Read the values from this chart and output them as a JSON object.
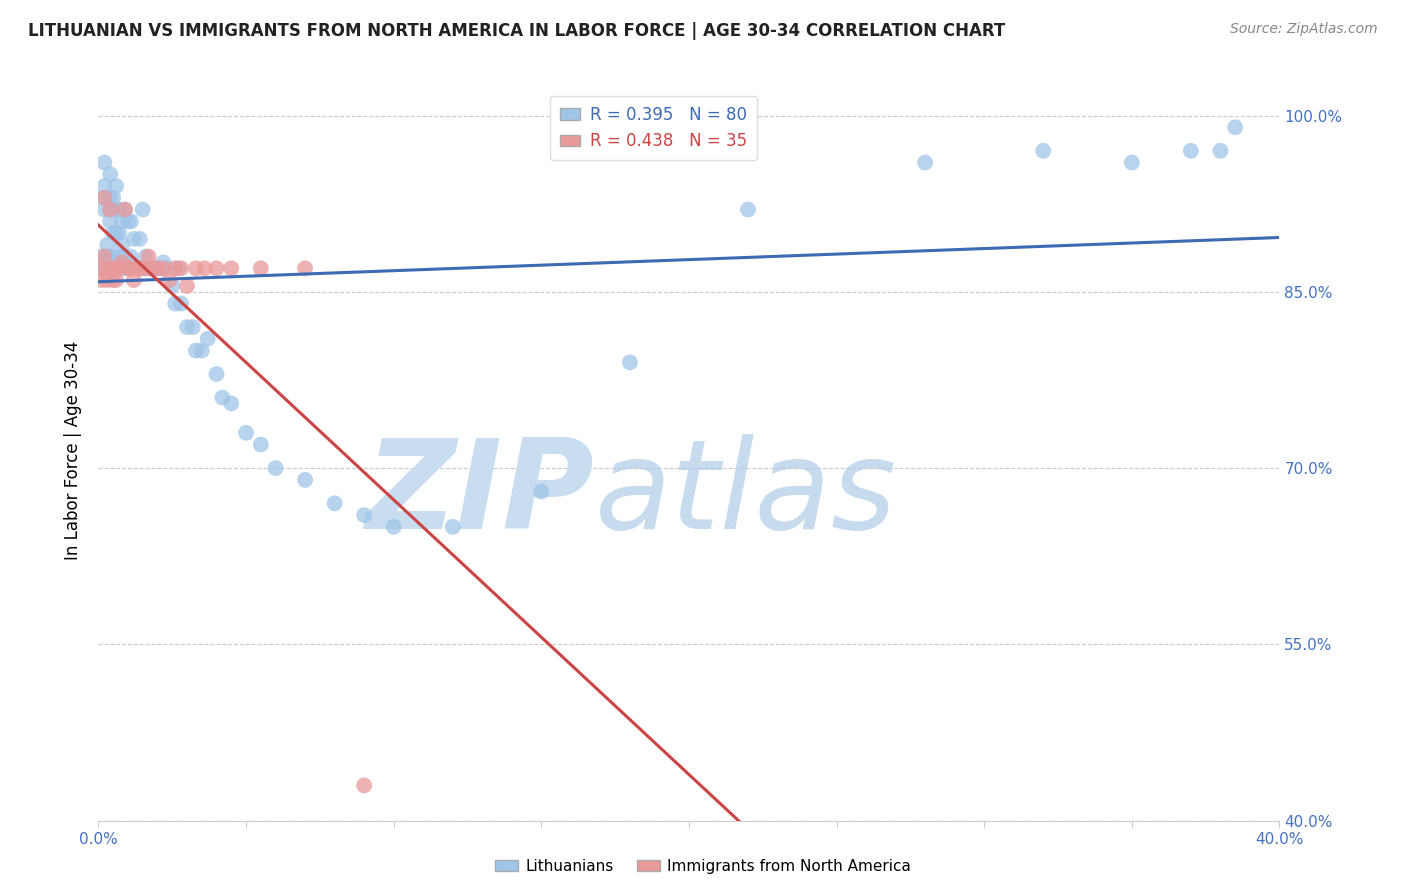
{
  "title": "LITHUANIAN VS IMMIGRANTS FROM NORTH AMERICA IN LABOR FORCE | AGE 30-34 CORRELATION CHART",
  "source": "Source: ZipAtlas.com",
  "ylabel": "In Labor Force | Age 30-34",
  "xmin": 0.0,
  "xmax": 0.4,
  "ymin": 0.4,
  "ymax": 1.03,
  "yticks": [
    0.4,
    0.55,
    0.7,
    0.85,
    1.0
  ],
  "ytick_labels": [
    "40.0%",
    "55.0%",
    "70.0%",
    "85.0%",
    "100.0%"
  ],
  "blue_R": 0.395,
  "blue_N": 80,
  "pink_R": 0.438,
  "pink_N": 35,
  "blue_color": "#9fc5e8",
  "pink_color": "#ea9999",
  "blue_line_color": "#3d6bb3",
  "pink_line_color": "#cc4444",
  "legend1": "Lithuanians",
  "legend2": "Immigrants from North America",
  "blue_x": [
    0.001,
    0.001,
    0.001,
    0.002,
    0.002,
    0.002,
    0.002,
    0.003,
    0.003,
    0.003,
    0.003,
    0.003,
    0.004,
    0.004,
    0.004,
    0.004,
    0.004,
    0.005,
    0.005,
    0.005,
    0.005,
    0.006,
    0.006,
    0.006,
    0.006,
    0.007,
    0.007,
    0.007,
    0.008,
    0.008,
    0.008,
    0.009,
    0.009,
    0.01,
    0.01,
    0.011,
    0.011,
    0.012,
    0.013,
    0.014,
    0.014,
    0.015,
    0.015,
    0.016,
    0.017,
    0.018,
    0.019,
    0.02,
    0.021,
    0.022,
    0.023,
    0.025,
    0.026,
    0.027,
    0.028,
    0.03,
    0.032,
    0.033,
    0.035,
    0.037,
    0.04,
    0.042,
    0.045,
    0.05,
    0.055,
    0.06,
    0.07,
    0.08,
    0.09,
    0.1,
    0.12,
    0.15,
    0.18,
    0.22,
    0.28,
    0.32,
    0.35,
    0.37,
    0.38,
    0.385
  ],
  "blue_y": [
    0.875,
    0.88,
    0.87,
    0.96,
    0.94,
    0.93,
    0.92,
    0.89,
    0.88,
    0.875,
    0.87,
    0.865,
    0.95,
    0.93,
    0.92,
    0.91,
    0.88,
    0.93,
    0.92,
    0.9,
    0.88,
    0.94,
    0.92,
    0.9,
    0.87,
    0.92,
    0.9,
    0.88,
    0.91,
    0.89,
    0.87,
    0.92,
    0.88,
    0.91,
    0.87,
    0.91,
    0.88,
    0.895,
    0.87,
    0.895,
    0.87,
    0.92,
    0.87,
    0.88,
    0.87,
    0.87,
    0.87,
    0.87,
    0.87,
    0.875,
    0.87,
    0.855,
    0.84,
    0.87,
    0.84,
    0.82,
    0.82,
    0.8,
    0.8,
    0.81,
    0.78,
    0.76,
    0.755,
    0.73,
    0.72,
    0.7,
    0.69,
    0.67,
    0.66,
    0.65,
    0.65,
    0.68,
    0.79,
    0.92,
    0.96,
    0.97,
    0.96,
    0.97,
    0.97,
    0.99
  ],
  "pink_x": [
    0.001,
    0.001,
    0.002,
    0.002,
    0.003,
    0.003,
    0.004,
    0.005,
    0.005,
    0.006,
    0.006,
    0.007,
    0.008,
    0.009,
    0.01,
    0.011,
    0.012,
    0.013,
    0.014,
    0.016,
    0.017,
    0.018,
    0.02,
    0.022,
    0.024,
    0.026,
    0.028,
    0.03,
    0.033,
    0.036,
    0.04,
    0.045,
    0.055,
    0.07,
    0.09
  ],
  "pink_y": [
    0.87,
    0.86,
    0.88,
    0.93,
    0.87,
    0.86,
    0.92,
    0.87,
    0.86,
    0.87,
    0.86,
    0.87,
    0.875,
    0.92,
    0.87,
    0.87,
    0.86,
    0.87,
    0.87,
    0.87,
    0.88,
    0.87,
    0.87,
    0.87,
    0.86,
    0.87,
    0.87,
    0.855,
    0.87,
    0.87,
    0.87,
    0.87,
    0.87,
    0.87,
    0.43
  ]
}
